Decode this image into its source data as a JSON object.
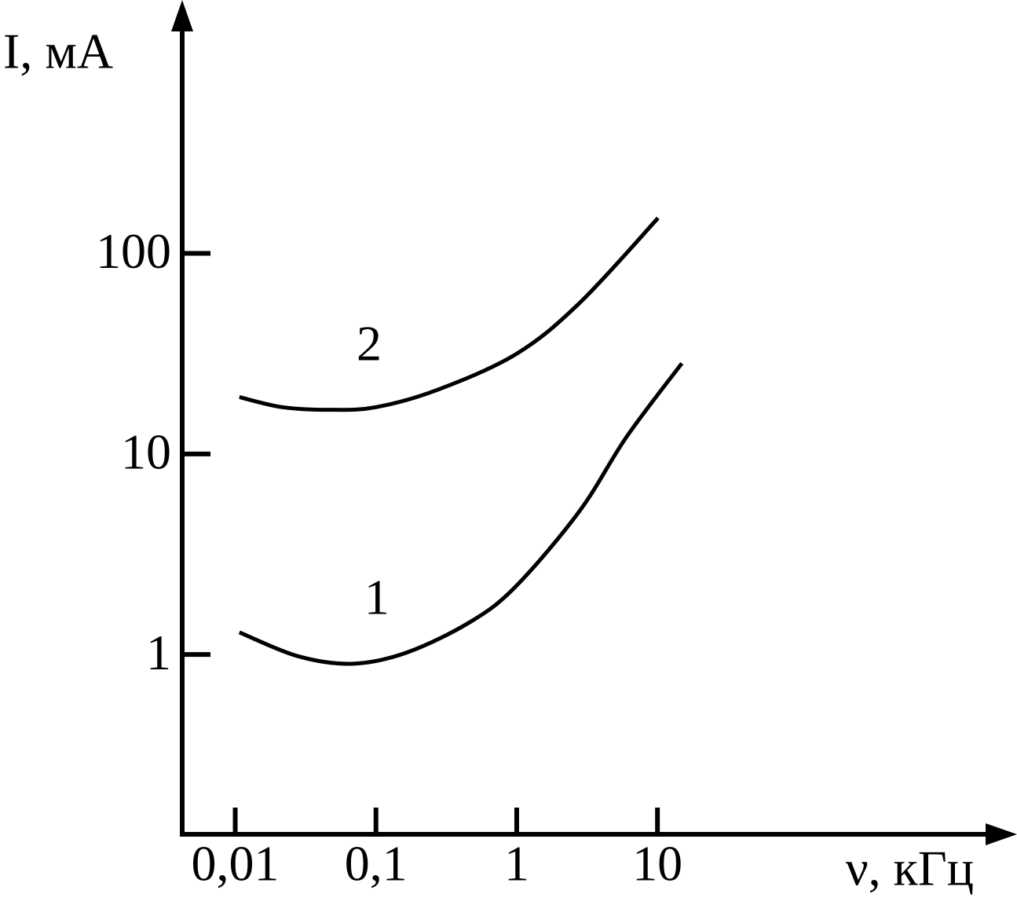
{
  "chart_data": {
    "type": "line",
    "xlabel": "ν, кГц",
    "ylabel": "I, мА",
    "xscale": "log",
    "yscale": "log",
    "xlim": [
      0.0042,
      2600
    ],
    "ylim": [
      0.127,
      1600
    ],
    "xticks": [
      {
        "value": 0.01,
        "label": "0,01"
      },
      {
        "value": 0.1,
        "label": "0,1"
      },
      1,
      10
    ],
    "yticks": [
      1,
      10,
      100
    ],
    "grid": false,
    "series": [
      {
        "name": "1",
        "color": "#000000",
        "x": [
          0.0107,
          0.028,
          0.069,
          0.17,
          0.48,
          1,
          2.8,
          6.05,
          14.9
        ],
        "values": [
          1.29,
          0.98,
          0.9,
          1.03,
          1.47,
          2.21,
          5.2,
          12.2,
          28.3
        ]
      },
      {
        "name": "2",
        "color": "#000000",
        "x": [
          0.0107,
          0.0216,
          0.047,
          0.1,
          0.28,
          1,
          2.8,
          10.1
        ],
        "values": [
          19.2,
          17.1,
          16.6,
          17.1,
          21.0,
          31.6,
          56.6,
          150
        ]
      }
    ]
  }
}
